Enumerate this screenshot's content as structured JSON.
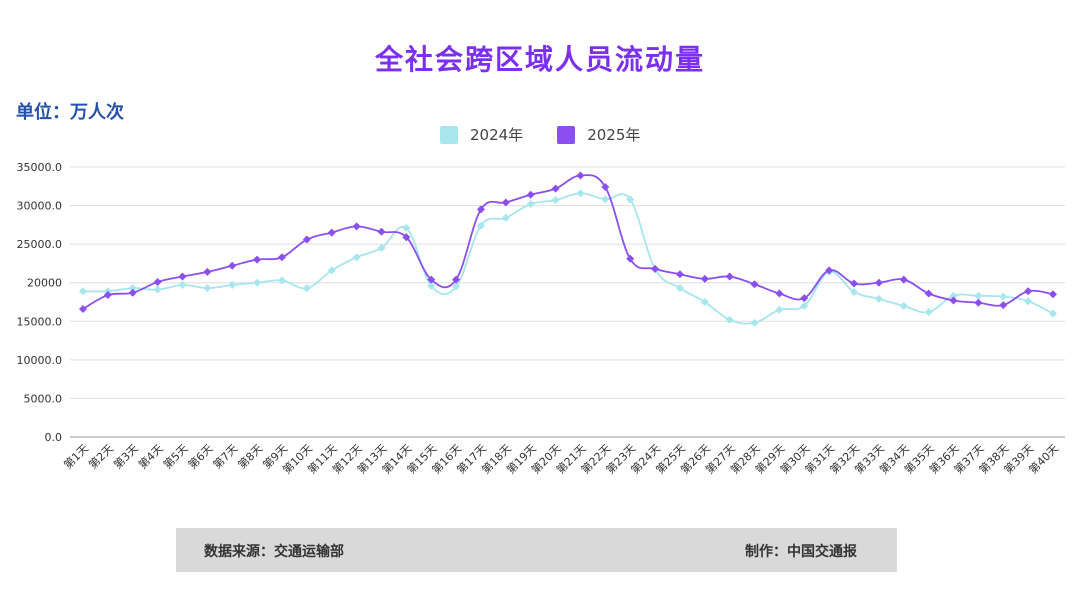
{
  "title": "全社会跨区域人员流动量",
  "unit": "单位：万人次",
  "footer": {
    "source": "数据来源：交通运输部",
    "maker": "制作：中国交通报"
  },
  "colors": {
    "series_2024": "#a6e6ec",
    "series_2025": "#8b4ff0",
    "title": "#7b2ff0",
    "unit": "#2452a8",
    "grid": "#dddddd",
    "footer_bg": "#d9d9d9"
  },
  "chart_data": {
    "type": "line",
    "title": "全社会跨区域人员流动量",
    "ylabel": "单位：万人次",
    "xlabel": "",
    "ylim": [
      0,
      35000
    ],
    "yticks": [
      "0.0",
      "5000.0",
      "10000.0",
      "15000.0",
      "20000",
      "25000.0",
      "30000.0",
      "35000.0"
    ],
    "ytick_values": [
      0,
      5000,
      10000,
      15000,
      20000,
      25000,
      30000,
      35000
    ],
    "grid": true,
    "legend": "top-center",
    "categories": [
      "第1天",
      "第2天",
      "第3天",
      "第4天",
      "第5天",
      "第6天",
      "第7天",
      "第8天",
      "第9天",
      "第10天",
      "第11天",
      "第12天",
      "第13天",
      "第14天",
      "第15天",
      "第16天",
      "第17天",
      "第18天",
      "第19天",
      "第20天",
      "第21天",
      "第22天",
      "第23天",
      "第24天",
      "第25天",
      "第26天",
      "第27天",
      "第28天",
      "第29天",
      "第30天",
      "第31天",
      "第32天",
      "第33天",
      "第34天",
      "第35天",
      "第36天",
      "第37天",
      "第38天",
      "第39天",
      "第40天"
    ],
    "series": [
      {
        "name": "2024年",
        "color": "#a6e6ec",
        "marker": "diamond",
        "values": [
          18900,
          18900,
          19300,
          19100,
          19700,
          19300,
          19700,
          20000,
          20300,
          19300,
          21600,
          23300,
          24500,
          27100,
          19600,
          19500,
          27400,
          28400,
          30200,
          30700,
          31600,
          30800,
          30800,
          21800,
          19300,
          17500,
          15200,
          14800,
          16500,
          17000,
          21400,
          18800,
          17900,
          17000,
          16200,
          18300,
          18300,
          18200,
          17600,
          16000
        ]
      },
      {
        "name": "2025年",
        "color": "#8b4ff0",
        "marker": "diamond",
        "values": [
          16600,
          18400,
          18700,
          20100,
          20800,
          21400,
          22200,
          23000,
          23300,
          25600,
          26500,
          27300,
          26600,
          25900,
          20400,
          20400,
          29500,
          30400,
          31400,
          32200,
          33900,
          32400,
          23100,
          21800,
          21100,
          20500,
          20800,
          19800,
          18600,
          18000,
          21600,
          19900,
          20000,
          20400,
          18600,
          17700,
          17400,
          17100,
          18900,
          18500
        ]
      }
    ]
  }
}
